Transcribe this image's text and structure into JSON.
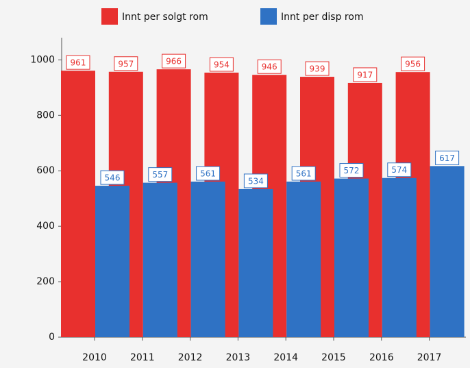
{
  "chart_data": {
    "type": "bar",
    "categories": [
      "2010",
      "2011",
      "2012",
      "2013",
      "2014",
      "2015",
      "2016",
      "2017"
    ],
    "series": [
      {
        "name": "Innt per solgt rom",
        "color": "#e8302e",
        "values": [
          961,
          957,
          966,
          954,
          946,
          939,
          917,
          956
        ]
      },
      {
        "name": "Innt per disp rom",
        "color": "#2f72c4",
        "values": [
          546,
          557,
          561,
          534,
          561,
          572,
          574,
          617
        ]
      }
    ],
    "ylim": [
      0,
      1080
    ],
    "yticks": [
      0,
      200,
      400,
      600,
      800,
      1000
    ],
    "grid": false,
    "legend": "top"
  }
}
